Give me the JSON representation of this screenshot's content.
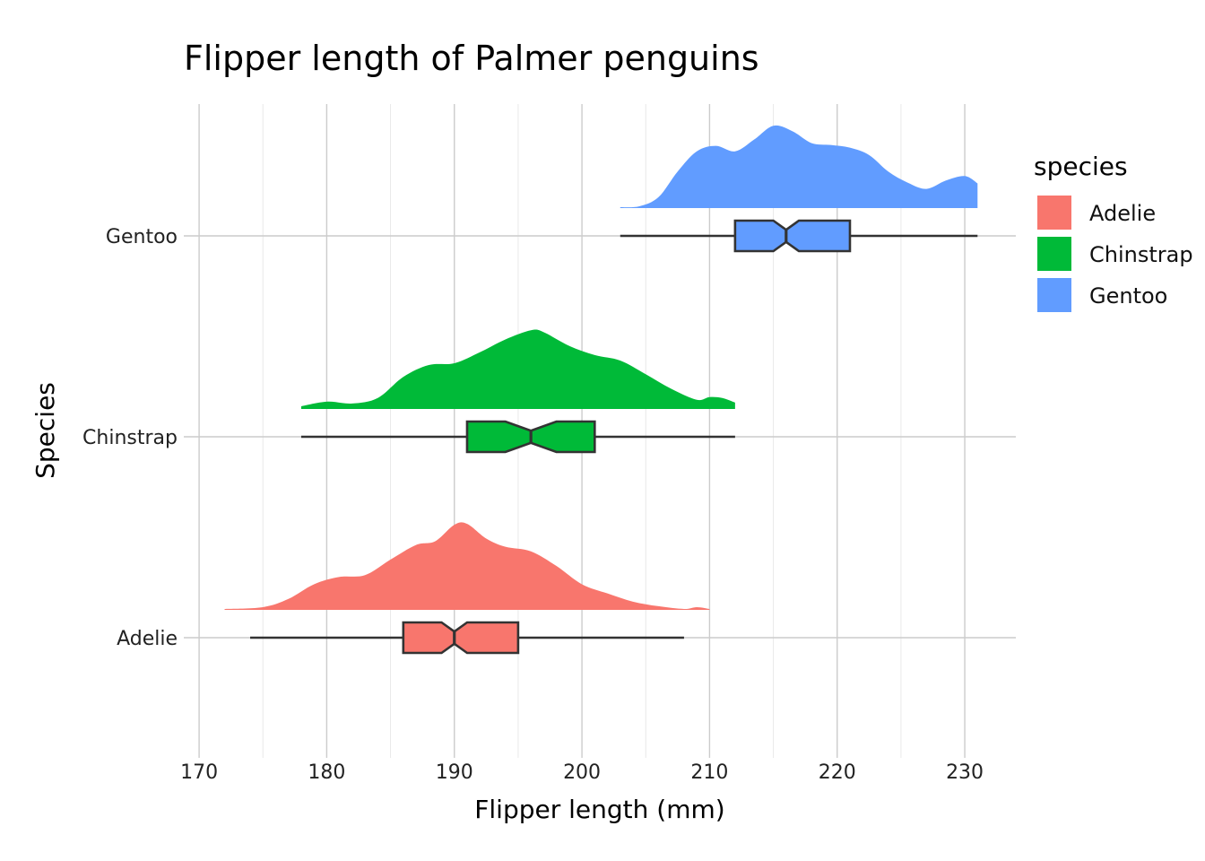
{
  "chart_data": {
    "type": "raincloud",
    "title": "Flipper length of Palmer penguins",
    "xlabel": "Flipper length (mm)",
    "ylabel": "Species",
    "xlim": [
      168.8,
      234
    ],
    "x_ticks": [
      170,
      180,
      190,
      200,
      210,
      220,
      230
    ],
    "categories": [
      "Adelie",
      "Chinstrap",
      "Gentoo"
    ],
    "grid": true,
    "legend": {
      "title": "species",
      "position": "right",
      "entries": [
        "Adelie",
        "Chinstrap",
        "Gentoo"
      ]
    },
    "series": [
      {
        "name": "Adelie",
        "color": "#F8766D",
        "box": {
          "min": 174,
          "q1": 186,
          "median": 190,
          "q3": 195,
          "max": 208,
          "notch_low": 189,
          "notch_high": 191
        },
        "range": [
          172,
          210
        ],
        "density": [
          [
            172,
            0.01
          ],
          [
            175,
            0.03
          ],
          [
            177,
            0.12
          ],
          [
            179,
            0.28
          ],
          [
            181,
            0.36
          ],
          [
            183,
            0.38
          ],
          [
            185,
            0.55
          ],
          [
            187,
            0.71
          ],
          [
            188.5,
            0.75
          ],
          [
            190,
            0.93
          ],
          [
            191,
            0.94
          ],
          [
            192.5,
            0.78
          ],
          [
            194,
            0.69
          ],
          [
            196,
            0.64
          ],
          [
            198,
            0.48
          ],
          [
            200,
            0.28
          ],
          [
            202,
            0.18
          ],
          [
            204,
            0.09
          ],
          [
            206,
            0.04
          ],
          [
            208,
            0.01
          ],
          [
            209,
            0.03
          ],
          [
            210,
            0.01
          ]
        ]
      },
      {
        "name": "Chinstrap",
        "color": "#00BA38",
        "box": {
          "min": 178,
          "q1": 191,
          "median": 196,
          "q3": 201,
          "max": 212,
          "notch_low": 194,
          "notch_high": 198
        },
        "range": [
          178,
          212
        ],
        "density": [
          [
            178,
            0.03
          ],
          [
            180,
            0.08
          ],
          [
            182,
            0.06
          ],
          [
            184,
            0.12
          ],
          [
            186,
            0.35
          ],
          [
            188,
            0.48
          ],
          [
            190,
            0.5
          ],
          [
            192,
            0.62
          ],
          [
            194,
            0.76
          ],
          [
            196,
            0.86
          ],
          [
            197,
            0.84
          ],
          [
            199,
            0.69
          ],
          [
            201,
            0.59
          ],
          [
            203,
            0.53
          ],
          [
            205,
            0.38
          ],
          [
            207,
            0.22
          ],
          [
            209,
            0.1
          ],
          [
            210,
            0.13
          ],
          [
            211,
            0.12
          ],
          [
            212,
            0.07
          ]
        ]
      },
      {
        "name": "Gentoo",
        "color": "#619CFF",
        "box": {
          "min": 203,
          "q1": 212,
          "median": 216,
          "q3": 221,
          "max": 231,
          "notch_low": 215,
          "notch_high": 217
        },
        "range": [
          203,
          231
        ],
        "density": [
          [
            203,
            0.01
          ],
          [
            204.5,
            0.02
          ],
          [
            206,
            0.12
          ],
          [
            207.5,
            0.4
          ],
          [
            209,
            0.62
          ],
          [
            210.5,
            0.68
          ],
          [
            212,
            0.62
          ],
          [
            213.5,
            0.75
          ],
          [
            215,
            0.9
          ],
          [
            216.5,
            0.84
          ],
          [
            218,
            0.71
          ],
          [
            219.5,
            0.69
          ],
          [
            221,
            0.66
          ],
          [
            222.5,
            0.58
          ],
          [
            224,
            0.4
          ],
          [
            225.5,
            0.28
          ],
          [
            227,
            0.21
          ],
          [
            228.5,
            0.3
          ],
          [
            230,
            0.35
          ],
          [
            231,
            0.27
          ]
        ]
      }
    ]
  }
}
